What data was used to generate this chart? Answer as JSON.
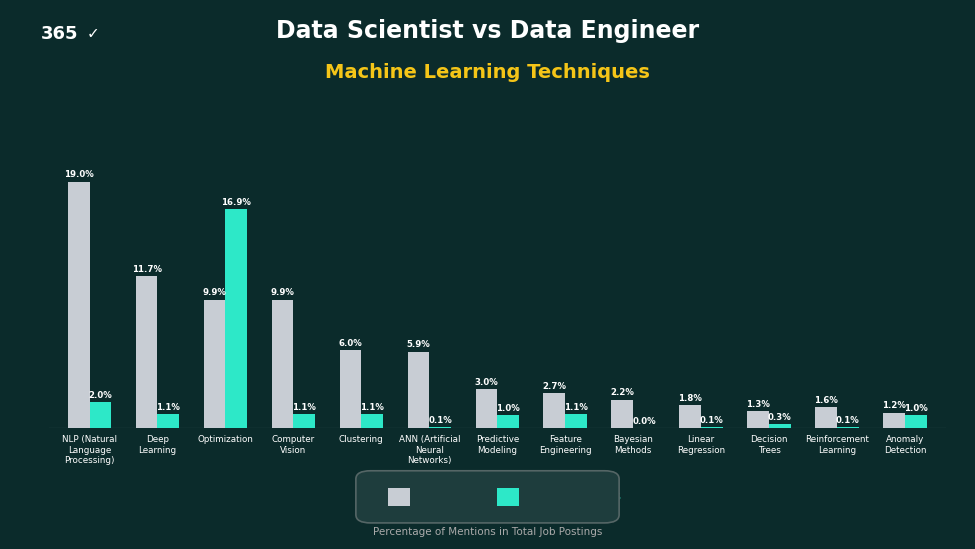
{
  "title_line1": "Data Scientist vs Data Engineer",
  "title_line2": "Machine Learning Techniques",
  "xlabel": "Percentage of Mentions in Total Job Postings",
  "categories": [
    "NLP (Natural\nLanguage\nProcessing)",
    "Deep\nLearning",
    "Optimization",
    "Computer\nVision",
    "Clustering",
    "ANN (Artificial\nNeural\nNetworks)",
    "Predictive\nModeling",
    "Feature\nEngineering",
    "Bayesian\nMethods",
    "Linear\nRegression",
    "Decision\nTrees",
    "Reinforcement\nLearning",
    "Anomaly\nDetection"
  ],
  "data_scientists": [
    19.0,
    11.7,
    9.9,
    9.9,
    6.0,
    5.9,
    3.0,
    2.7,
    2.2,
    1.8,
    1.3,
    1.6,
    1.2
  ],
  "data_engineers": [
    2.0,
    1.1,
    16.9,
    1.1,
    1.1,
    0.1,
    1.0,
    1.1,
    0.0,
    0.1,
    0.3,
    0.1,
    1.0
  ],
  "bar_color_scientists": "#c8cdd4",
  "bar_color_engineers": "#2de8c8",
  "bg_color": "#0b2b2b",
  "title_color": "#ffffff",
  "subtitle_color": "#f5c518",
  "xlabel_color": "#aaaaaa",
  "tick_label_color": "#ffffff",
  "bar_width": 0.32,
  "ylim": [
    0,
    22
  ]
}
